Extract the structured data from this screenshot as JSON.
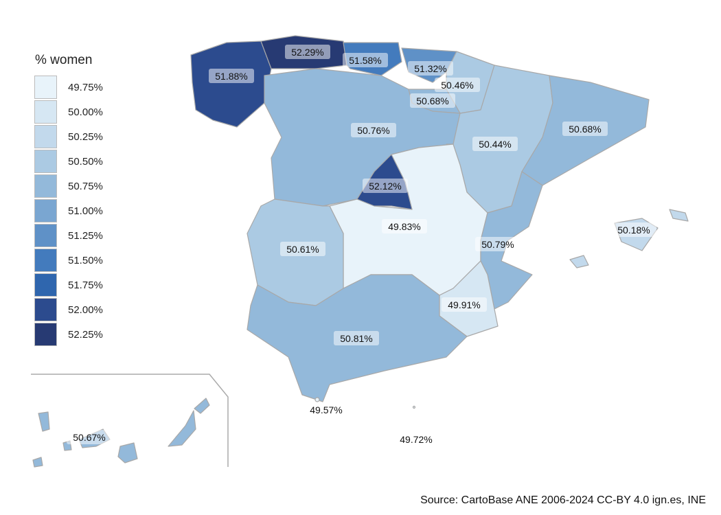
{
  "legend": {
    "title": "% women",
    "items": [
      {
        "label": "49.75%",
        "color": "#e8f3fa"
      },
      {
        "label": "50.00%",
        "color": "#d6e7f3"
      },
      {
        "label": "50.25%",
        "color": "#c2d9ec"
      },
      {
        "label": "50.50%",
        "color": "#abcae3"
      },
      {
        "label": "50.75%",
        "color": "#93b9da"
      },
      {
        "label": "51.00%",
        "color": "#7aa6d1"
      },
      {
        "label": "51.25%",
        "color": "#5f91c7"
      },
      {
        "label": "51.50%",
        "color": "#437bbd"
      },
      {
        "label": "51.75%",
        "color": "#2f66ae"
      },
      {
        "label": "52.00%",
        "color": "#2c4b8e"
      },
      {
        "label": "52.25%",
        "color": "#273a73"
      }
    ]
  },
  "regions": [
    {
      "value": 51.88,
      "label": "51.88%"
    },
    {
      "value": 52.29,
      "label": "52.29%"
    },
    {
      "value": 51.58,
      "label": "51.58%"
    },
    {
      "value": 51.32,
      "label": "51.32%"
    },
    {
      "value": 50.46,
      "label": "50.46%"
    },
    {
      "value": 50.68,
      "label": "50.68%"
    },
    {
      "value": 50.76,
      "label": "50.76%"
    },
    {
      "value": 50.44,
      "label": "50.44%"
    },
    {
      "value": 50.68,
      "label": "50.68%"
    },
    {
      "value": 52.12,
      "label": "52.12%"
    },
    {
      "value": 49.83,
      "label": "49.83%"
    },
    {
      "value": 50.61,
      "label": "50.61%"
    },
    {
      "value": 50.79,
      "label": "50.79%"
    },
    {
      "value": 49.91,
      "label": "49.91%"
    },
    {
      "value": 50.81,
      "label": "50.81%"
    },
    {
      "value": 50.18,
      "label": "50.18%"
    },
    {
      "value": 50.67,
      "label": "50.67%"
    },
    {
      "value": 49.57,
      "label": "49.57%"
    },
    {
      "value": 49.72,
      "label": "49.72%"
    }
  ],
  "source": "Source: CartoBase ANE 2006-2024 CC-BY 4.0 ign.es, INE"
}
